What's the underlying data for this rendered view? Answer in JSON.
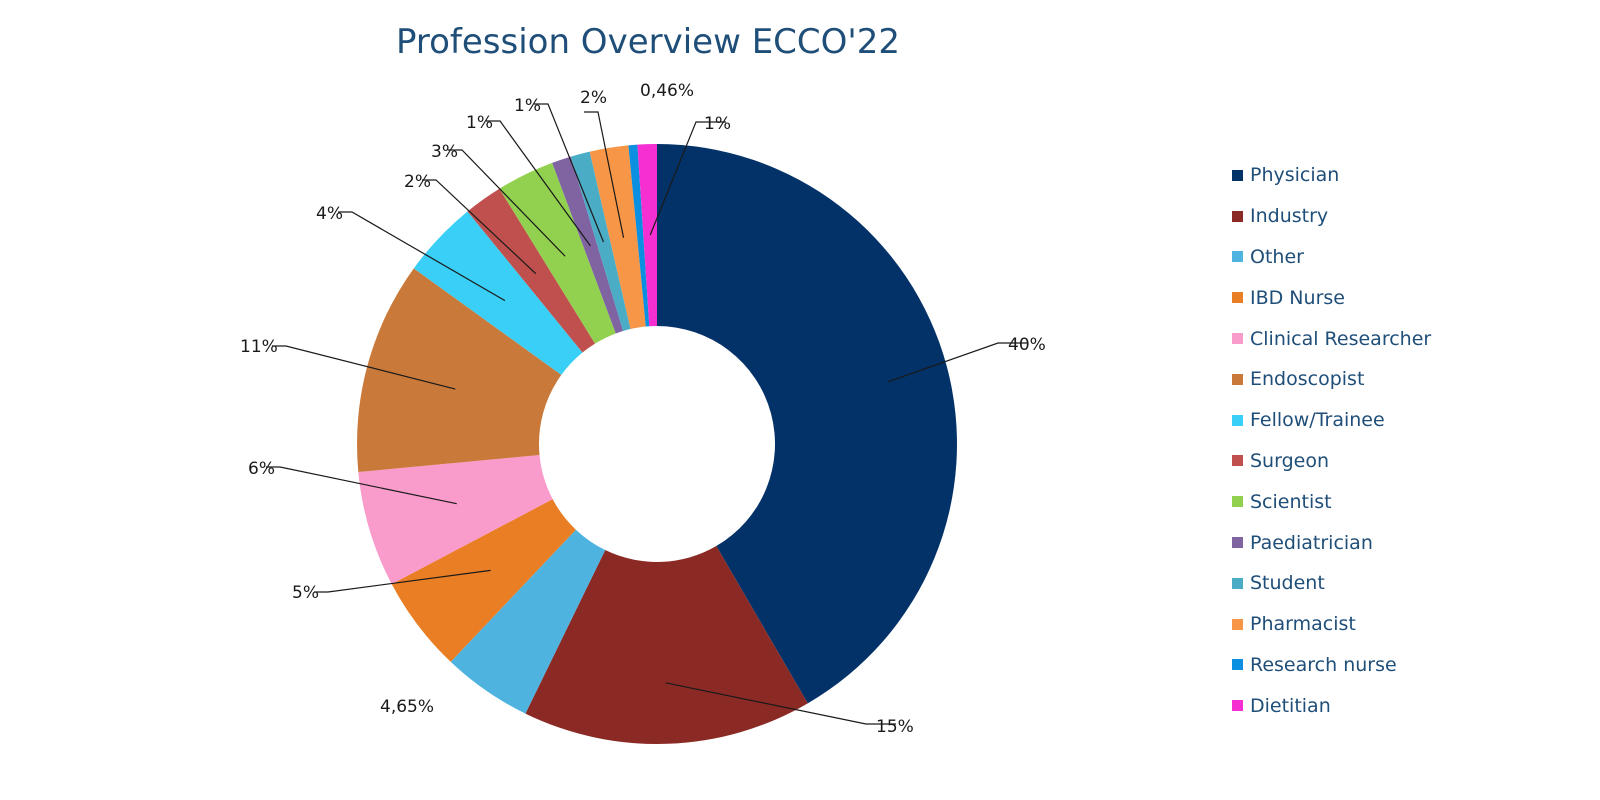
{
  "chart_data": {
    "type": "pie",
    "donut": true,
    "title": "Profession Overview ECCO'22",
    "legend_position": "right",
    "slices": [
      {
        "name": "Physician",
        "value": 40,
        "label": "40%",
        "color": "#033268"
      },
      {
        "name": "Industry",
        "value": 15,
        "label": "15%",
        "color": "#8b2a24"
      },
      {
        "name": "Other",
        "value": 4.65,
        "label": "4,65%",
        "color": "#4fb3e0"
      },
      {
        "name": "IBD Nurse",
        "value": 5,
        "label": "5%",
        "color": "#e97e24"
      },
      {
        "name": "Clinical Researcher",
        "value": 6,
        "label": "6%",
        "color": "#f99bcb"
      },
      {
        "name": "Endoscopist",
        "value": 11,
        "label": "11%",
        "color": "#c97a3b"
      },
      {
        "name": "Fellow/Trainee",
        "value": 4,
        "label": "4%",
        "color": "#39cff7"
      },
      {
        "name": "Surgeon",
        "value": 2,
        "label": "2%",
        "color": "#c0504d"
      },
      {
        "name": "Scientist",
        "value": 3,
        "label": "3%",
        "color": "#92d050"
      },
      {
        "name": "Paediatrician",
        "value": 1,
        "label": "1%",
        "color": "#8064a2"
      },
      {
        "name": "Student",
        "value": 1,
        "label": "1%",
        "color": "#4bacc6"
      },
      {
        "name": "Pharmacist",
        "value": 2,
        "label": "2%",
        "color": "#f79646"
      },
      {
        "name": "Research nurse",
        "value": 0.46,
        "label": "0,46%",
        "color": "#0b8fe0"
      },
      {
        "name": "Dietitian",
        "value": 1,
        "label": "1%",
        "color": "#f52fd1"
      }
    ]
  }
}
